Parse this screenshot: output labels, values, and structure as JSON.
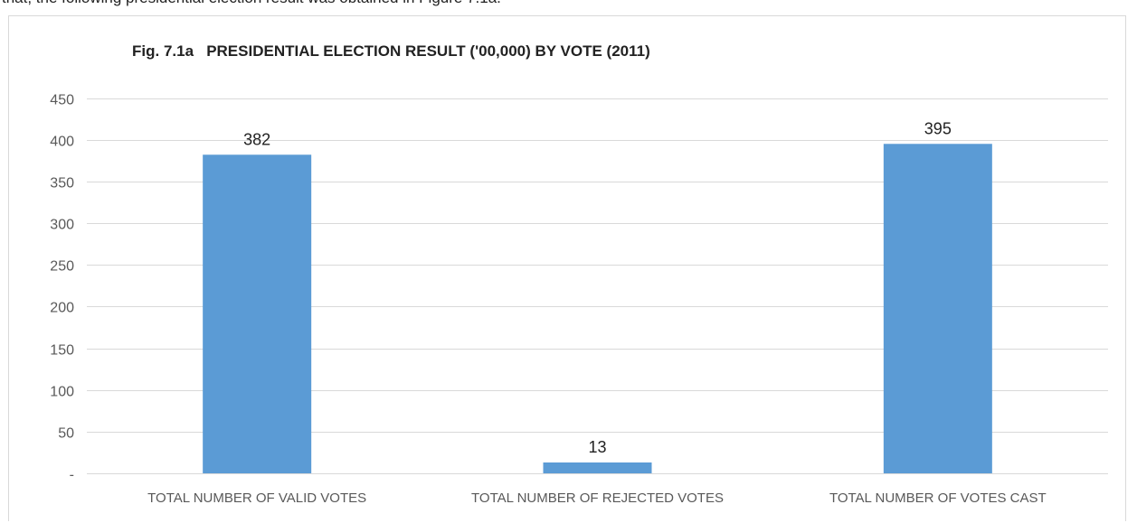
{
  "page": {
    "clipped_text": "that, the following presidential election result was obtained in Figure 7.1a."
  },
  "chart_data": {
    "type": "bar",
    "title": "Fig. 7.1a   PRESIDENTIAL ELECTION RESULT ('00,000) BY VOTE (2011)",
    "categories": [
      "TOTAL NUMBER OF VALID VOTES",
      "TOTAL NUMBER OF REJECTED VOTES",
      "TOTAL NUMBER OF VOTES CAST"
    ],
    "values": [
      382,
      13,
      395
    ],
    "data_labels": [
      "382",
      "13",
      "395"
    ],
    "xlabel": "",
    "ylabel": "",
    "ylim": [
      0,
      450
    ],
    "yticks": [
      0,
      50,
      100,
      150,
      200,
      250,
      300,
      350,
      400,
      450
    ],
    "ytick_labels": [
      "-",
      "50",
      "100",
      "150",
      "200",
      "250",
      "300",
      "350",
      "400",
      "450"
    ],
    "grid": true,
    "legend": "none",
    "colors": {
      "bar": "#5b9bd5",
      "grid": "#d9d9d9",
      "axis_text": "#595959"
    }
  }
}
